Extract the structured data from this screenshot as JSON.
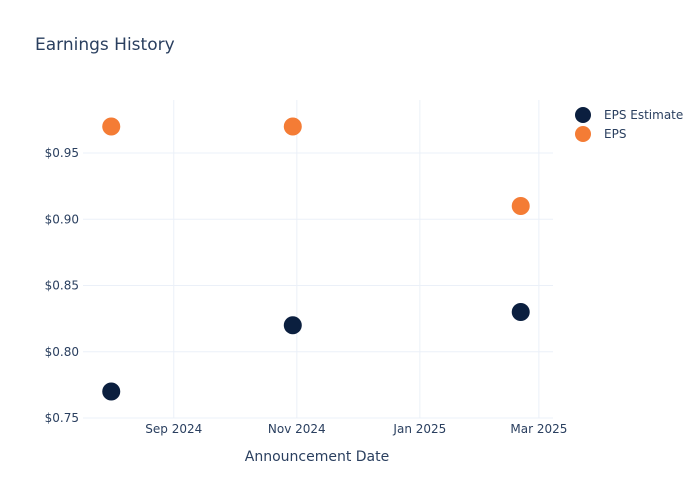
{
  "chart_data": {
    "type": "scatter",
    "title": "Earnings History",
    "xlabel": "Announcement Date",
    "ylabel": "",
    "x_ticks": [
      {
        "date": "2024-09-01",
        "label": "Sep 2024"
      },
      {
        "date": "2024-11-01",
        "label": "Nov 2024"
      },
      {
        "date": "2025-01-01",
        "label": "Jan 2025"
      },
      {
        "date": "2025-03-01",
        "label": "Mar 2025"
      }
    ],
    "y_ticks": [
      {
        "value": 0.75,
        "label": "$0.75"
      },
      {
        "value": 0.8,
        "label": "$0.80"
      },
      {
        "value": 0.85,
        "label": "$0.85"
      },
      {
        "value": 0.9,
        "label": "$0.90"
      },
      {
        "value": 0.95,
        "label": "$0.95"
      }
    ],
    "xlim": [
      "2024-07-18",
      "2025-03-08"
    ],
    "ylim": [
      0.75,
      0.99
    ],
    "grid": true,
    "legend_position": "top-right",
    "series": [
      {
        "name": "EPS Estimate",
        "color": "#0b1f3f",
        "points": [
          {
            "x": "2024-08-01",
            "y": 0.77
          },
          {
            "x": "2024-10-30",
            "y": 0.82
          },
          {
            "x": "2025-02-20",
            "y": 0.83
          }
        ]
      },
      {
        "name": "EPS",
        "color": "#f47c35",
        "points": [
          {
            "x": "2024-08-01",
            "y": 0.97
          },
          {
            "x": "2024-10-30",
            "y": 0.97
          },
          {
            "x": "2025-02-20",
            "y": 0.91
          }
        ]
      }
    ]
  }
}
